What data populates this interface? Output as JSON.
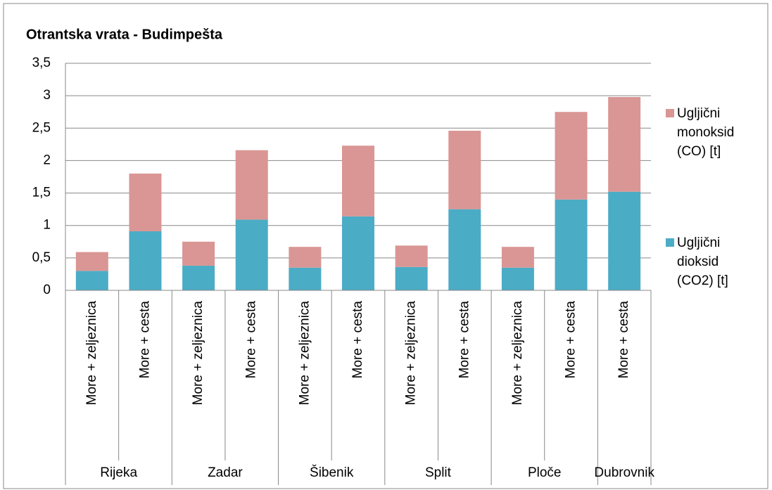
{
  "chart_data": {
    "type": "stacked_bar",
    "title": "Otrantska vrata - Budimpešta",
    "categories": [
      "More + zeljeznica",
      "More + cesta",
      "More + zeljeznica",
      "More + cesta",
      "More + zeljeznica",
      "More + cesta",
      "More + zeljeznica",
      "More + cesta",
      "More + zeljeznica",
      "More + cesta",
      "More + cesta"
    ],
    "groups": [
      {
        "label": "Rijeka",
        "size": 2
      },
      {
        "label": "Zadar",
        "size": 2
      },
      {
        "label": "Šibenik",
        "size": 2
      },
      {
        "label": "Split",
        "size": 2
      },
      {
        "label": "Ploče",
        "size": 2
      },
      {
        "label": "Dubrovnik",
        "size": 1
      }
    ],
    "series": [
      {
        "name": "Ugljični dioksid (CO2)  [t]",
        "color": "#4bacc6",
        "values": [
          0.3,
          0.91,
          0.38,
          1.09,
          0.35,
          1.14,
          0.36,
          1.25,
          0.35,
          1.4,
          1.52
        ]
      },
      {
        "name": "Ugljični monoksid (CO)  [t]",
        "color": "#d99694",
        "values": [
          0.29,
          0.89,
          0.37,
          1.07,
          0.32,
          1.09,
          0.33,
          1.21,
          0.32,
          1.35,
          1.46
        ]
      }
    ],
    "ylim": [
      0,
      3.5
    ],
    "yticks": [
      0,
      {
        "value": 0.5,
        "label": "0,5"
      },
      1,
      {
        "value": 1.5,
        "label": "1,5"
      },
      2,
      {
        "value": 2.5,
        "label": "2,5"
      },
      3,
      {
        "value": 3.5,
        "label": "3,5"
      }
    ],
    "grid": true,
    "legend": "right"
  }
}
